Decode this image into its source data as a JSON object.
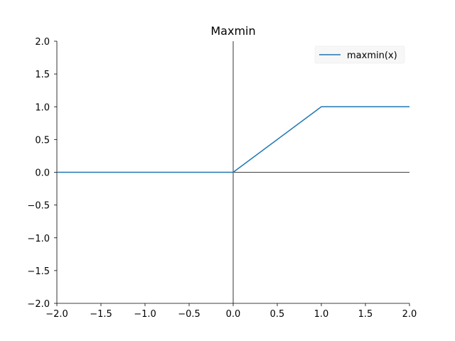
{
  "chart_data": {
    "type": "line",
    "title": "Maxmin",
    "xlabel": "",
    "ylabel": "",
    "xlim": [
      -2.0,
      2.0
    ],
    "ylim": [
      -2.0,
      2.0
    ],
    "x_ticks": [
      -2.0,
      -1.5,
      -1.0,
      -0.5,
      0.0,
      0.5,
      1.0,
      1.5,
      2.0
    ],
    "y_ticks": [
      -2.0,
      -1.5,
      -1.0,
      -0.5,
      0.0,
      0.5,
      1.0,
      1.5,
      2.0
    ],
    "x_tick_labels": [
      "−2.0",
      "−1.5",
      "−1.0",
      "−0.5",
      "0.0",
      "0.5",
      "1.0",
      "1.5",
      "2.0"
    ],
    "y_tick_labels": [
      "−2.0",
      "−1.5",
      "−1.0",
      "−0.5",
      "0.0",
      "0.5",
      "1.0",
      "1.5",
      "2.0"
    ],
    "grid": false,
    "legend_position": "top-right",
    "series": [
      {
        "name": "maxmin(x)",
        "color": "#1f77b4",
        "x": [
          -2.0,
          0.0,
          1.0,
          2.0
        ],
        "y": [
          0.0,
          0.0,
          1.0,
          1.0
        ]
      }
    ],
    "reference_lines": {
      "horizontal_at_y": 0.0,
      "vertical_at_x": 0.0,
      "color": "#000000"
    }
  }
}
